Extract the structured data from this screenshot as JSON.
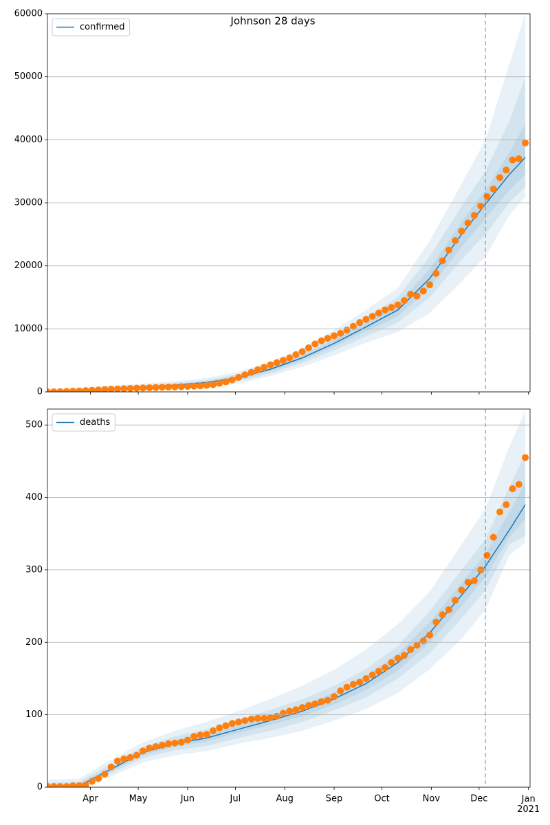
{
  "chart_data": [
    {
      "type": "line",
      "title": "Johnson 28 days",
      "xlim": [
        0,
        303
      ],
      "xticks": [
        27,
        57,
        88,
        118,
        149,
        180,
        210,
        241,
        271,
        302
      ],
      "ylim": [
        0,
        60000
      ],
      "yticks": [
        0,
        10000,
        20000,
        30000,
        40000,
        50000,
        60000
      ],
      "grid": "y",
      "legend": "upper left",
      "vline_x": 275,
      "series": [
        {
          "name": "confirmed",
          "color": "#1f77b4",
          "x": [
            0,
            20,
            40,
            60,
            80,
            100,
            120,
            140,
            160,
            180,
            200,
            220,
            240,
            260,
            275,
            290,
            300
          ],
          "values": [
            0,
            150,
            450,
            750,
            1050,
            1500,
            2250,
            3600,
            5400,
            7700,
            10300,
            13000,
            18000,
            25000,
            29800,
            34500,
            37200
          ]
        }
      ],
      "bands": {
        "color": "#1f77b4",
        "x": [
          0,
          20,
          40,
          60,
          80,
          100,
          120,
          140,
          160,
          180,
          200,
          220,
          240,
          260,
          275,
          290,
          300
        ],
        "levels": [
          {
            "lower": [
              0,
              0,
              100,
              300,
              500,
              800,
              1300,
              2500,
              4000,
              5800,
              7800,
              9500,
              12500,
              17500,
              21500,
              28000,
              31000
            ],
            "upper": [
              400,
              600,
              1000,
              1300,
              1700,
              2200,
              3200,
              4800,
              6900,
              9800,
              13000,
              16500,
              24000,
              33000,
              40000,
              52000,
              60000
            ]
          },
          {
            "lower": [
              0,
              50,
              250,
              500,
              750,
              1100,
              1700,
              2900,
              4600,
              6600,
              8800,
              11000,
              15000,
              21000,
              25000,
              30000,
              32500
            ],
            "upper": [
              250,
              400,
              750,
              1050,
              1400,
              1900,
              2800,
              4300,
              6200,
              8900,
              11800,
              15000,
              21500,
              29500,
              35000,
              43000,
              50000
            ]
          },
          {
            "lower": [
              0,
              100,
              350,
              650,
              900,
              1300,
              2000,
              3250,
              5000,
              7200,
              9600,
              12000,
              16500,
              23000,
              27500,
              32000,
              34500
            ],
            "upper": [
              150,
              250,
              600,
              900,
              1250,
              1700,
              2550,
              4000,
              5800,
              8300,
              11000,
              14000,
              19500,
              27000,
              32000,
              38000,
              42500
            ]
          }
        ]
      },
      "observed": {
        "color": "#ff7f0e",
        "x": [
          0,
          4,
          8,
          12,
          16,
          20,
          24,
          28,
          32,
          36,
          40,
          44,
          48,
          52,
          56,
          60,
          64,
          68,
          72,
          76,
          80,
          84,
          88,
          92,
          96,
          100,
          104,
          108,
          112,
          116,
          120,
          124,
          128,
          132,
          136,
          140,
          144,
          148,
          152,
          156,
          160,
          164,
          168,
          172,
          176,
          180,
          184,
          188,
          192,
          196,
          200,
          204,
          208,
          212,
          216,
          220,
          224,
          228,
          232,
          236,
          240,
          244,
          248,
          252,
          256,
          260,
          264,
          268,
          272,
          276,
          280,
          284,
          288,
          292,
          296,
          300
        ],
        "values": [
          10,
          20,
          40,
          80,
          120,
          150,
          200,
          260,
          320,
          380,
          430,
          470,
          510,
          550,
          590,
          630,
          660,
          690,
          720,
          750,
          780,
          820,
          860,
          900,
          950,
          1020,
          1150,
          1350,
          1600,
          1900,
          2300,
          2700,
          3100,
          3500,
          3900,
          4300,
          4650,
          5000,
          5400,
          5900,
          6400,
          7000,
          7600,
          8100,
          8500,
          8900,
          9300,
          9800,
          10400,
          11000,
          11500,
          12000,
          12500,
          13000,
          13400,
          13800,
          14500,
          15500,
          15200,
          16000,
          17000,
          18800,
          20800,
          22500,
          24000,
          25500,
          26800,
          28000,
          29500,
          31000,
          32200,
          34000,
          35200,
          36800,
          37000,
          39500
        ]
      }
    },
    {
      "type": "line",
      "xlim": [
        0,
        303
      ],
      "xticks": [
        {
          "value": 27,
          "label": "Apr"
        },
        {
          "value": 57,
          "label": "May"
        },
        {
          "value": 88,
          "label": "Jun"
        },
        {
          "value": 118,
          "label": "Jul"
        },
        {
          "value": 149,
          "label": "Aug"
        },
        {
          "value": 180,
          "label": "Sep"
        },
        {
          "value": 210,
          "label": "Oct"
        },
        {
          "value": 241,
          "label": "Nov"
        },
        {
          "value": 271,
          "label": "Dec"
        },
        {
          "value": 302,
          "label": "Jan\n2021"
        }
      ],
      "ylim": [
        0,
        522
      ],
      "yticks": [
        0,
        100,
        200,
        300,
        400,
        500
      ],
      "grid": "y",
      "legend": "upper left",
      "vline_x": 275,
      "series": [
        {
          "name": "deaths",
          "color": "#1f77b4",
          "x": [
            0,
            20,
            40,
            60,
            80,
            100,
            120,
            140,
            160,
            180,
            200,
            220,
            240,
            260,
            275,
            290,
            300
          ],
          "values": [
            1,
            2,
            25,
            48,
            60,
            68,
            80,
            92,
            105,
            122,
            143,
            172,
            213,
            265,
            305,
            355,
            390
          ]
        }
      ],
      "bands": {
        "color": "#1f77b4",
        "x": [
          0,
          20,
          40,
          60,
          80,
          100,
          120,
          140,
          160,
          180,
          200,
          220,
          240,
          260,
          275,
          290,
          300
        ],
        "levels": [
          {
            "lower": [
              0,
              0,
              15,
              34,
              44,
              50,
              60,
              68,
              78,
              92,
              108,
              130,
              163,
              205,
              245,
              320,
              338
            ],
            "upper": [
              10,
              12,
              38,
              62,
              78,
              90,
              105,
              122,
              140,
              162,
              190,
              225,
              270,
              335,
              385,
              470,
              520
            ]
          },
          {
            "lower": [
              0,
              0,
              19,
              40,
              51,
              57,
              68,
              78,
              90,
              106,
              124,
              150,
              185,
              233,
              272,
              335,
              347
            ],
            "upper": [
              6,
              8,
              32,
              56,
              70,
              80,
              93,
              107,
              121,
              140,
              163,
              195,
              243,
              300,
              342,
              415,
              460
            ]
          },
          {
            "lower": [
              0,
              1,
              22,
              44,
              56,
              63,
              75,
              86,
              98,
              114,
              134,
              161,
              200,
              250,
              290,
              345,
              370
            ],
            "upper": [
              3,
              5,
              28,
              52,
              65,
              74,
              86,
              99,
              113,
              131,
              153,
              184,
              228,
              282,
              322,
              380,
              420
            ]
          }
        ]
      },
      "observed": {
        "color": "#ff7f0e",
        "x": [
          0,
          4,
          8,
          12,
          16,
          20,
          24,
          28,
          32,
          36,
          40,
          44,
          48,
          52,
          56,
          60,
          64,
          68,
          72,
          76,
          80,
          84,
          88,
          92,
          96,
          100,
          104,
          108,
          112,
          116,
          120,
          124,
          128,
          132,
          136,
          140,
          144,
          148,
          152,
          156,
          160,
          164,
          168,
          172,
          176,
          180,
          184,
          188,
          192,
          196,
          200,
          204,
          208,
          212,
          216,
          220,
          224,
          228,
          232,
          236,
          240,
          244,
          248,
          252,
          256,
          260,
          264,
          268,
          272,
          276,
          280,
          284,
          288,
          292,
          296,
          300
        ],
        "values": [
          1,
          1,
          1,
          1,
          2,
          2,
          3,
          8,
          12,
          18,
          28,
          36,
          39,
          41,
          44,
          50,
          54,
          56,
          58,
          60,
          61,
          62,
          65,
          70,
          72,
          73,
          78,
          82,
          85,
          88,
          90,
          92,
          94,
          95,
          95,
          96,
          98,
          102,
          105,
          107,
          110,
          113,
          115,
          118,
          120,
          125,
          133,
          138,
          142,
          145,
          150,
          155,
          160,
          165,
          172,
          178,
          182,
          190,
          196,
          202,
          210,
          228,
          238,
          245,
          258,
          272,
          283,
          285,
          300,
          320,
          345,
          380,
          390,
          412,
          418,
          455
        ]
      }
    }
  ]
}
